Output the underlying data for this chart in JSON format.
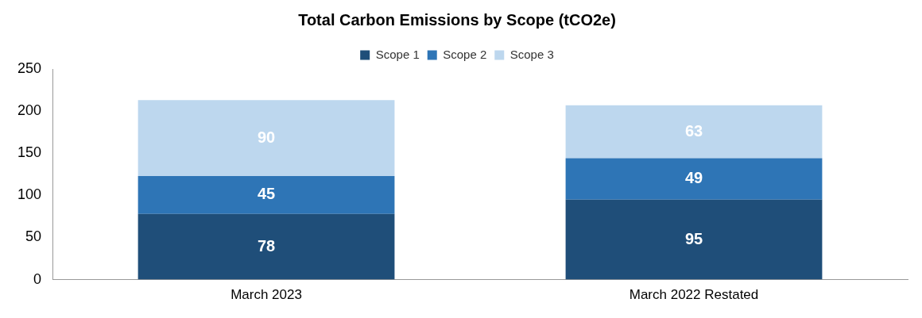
{
  "chart_data": {
    "type": "bar",
    "title": "Total Carbon Emissions by Scope (tCO2e)",
    "categories": [
      "March 2023",
      "March 2022 Restated"
    ],
    "stacked": true,
    "series": [
      {
        "name": "Scope 1",
        "color": "#1f4e79",
        "values": [
          78,
          95
        ]
      },
      {
        "name": "Scope 2",
        "color": "#2e75b6",
        "values": [
          45,
          49
        ]
      },
      {
        "name": "Scope 3",
        "color": "#bdd7ee",
        "values": [
          90,
          63
        ]
      }
    ],
    "ylim": [
      0,
      250
    ],
    "yticks": [
      0,
      50,
      100,
      150,
      200,
      250
    ],
    "grid": false,
    "legend": "top",
    "data_labels": true
  }
}
